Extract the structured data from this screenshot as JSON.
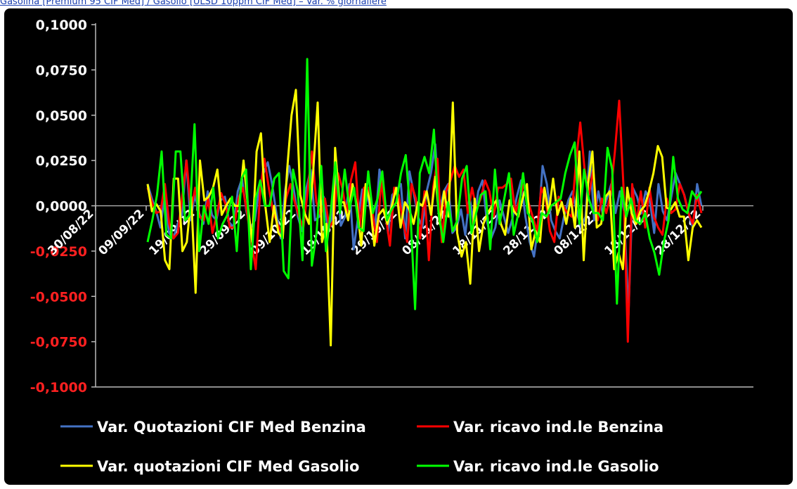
{
  "page": {
    "header_text": "Gasolina [Premium 95 CIF Med] / Gasolio [ULSD 10ppm CIF Med] – Var. % giornaliere"
  },
  "colors": {
    "background": "#000000",
    "axis": "#bbbbbb",
    "positive_tick": "#ffffff",
    "negative_tick": "#ff2020"
  },
  "chart_data": {
    "type": "line",
    "title": "",
    "xlabel": "",
    "ylabel": "",
    "ylim": [
      -0.1,
      0.1
    ],
    "yticks": [
      0.1,
      0.075,
      0.05,
      0.025,
      0,
      -0.025,
      -0.05,
      -0.075,
      -0.1
    ],
    "ytick_labels": [
      "0,1000",
      "0,0750",
      "0,0500",
      "0,0250",
      "0,0000",
      "-0,0250",
      "-0,0500",
      "-0,0750",
      "-0,1000"
    ],
    "xticks": [
      "30/08/22",
      "09/09/22",
      "19/09/22",
      "29/09/22",
      "09/10/22",
      "19/10/22",
      "29/10/22",
      "08/11/22",
      "18/11/22",
      "28/11/22",
      "08/12/22",
      "18/12/22",
      "28/12/22"
    ],
    "grid": false,
    "legend": "bottom",
    "x_start": "09/09/22",
    "series": [
      {
        "name": "Var. Quotazioni CIF Med Benzina",
        "color": "#4472c4",
        "values": [
          0.012,
          0.004,
          -0.003,
          -0.012,
          0.006,
          -0.015,
          -0.018,
          -0.01,
          -0.005,
          0.025,
          -0.008,
          0.006,
          -0.004,
          -0.01,
          0.008,
          -0.005,
          -0.008,
          0.003,
          0.005,
          -0.009,
          -0.012,
          0.008,
          0.015,
          -0.003,
          -0.012,
          -0.008,
          0.01,
          0.018,
          0.024,
          0.012,
          -0.004,
          -0.018,
          0.008,
          0.022,
          0.01,
          -0.006,
          -0.014,
          0.01,
          0.02,
          -0.008,
          -0.006,
          0.005,
          -0.014,
          -0.006,
          0.022,
          -0.011,
          -0.006,
          0.012,
          -0.024,
          -0.007,
          0.009,
          0.007,
          -0.003,
          -0.012,
          0.02,
          0.008,
          -0.015,
          0.006,
          0.009,
          0.012,
          -0.018,
          0.019,
          0.007,
          -0.006,
          -0.012,
          0.008,
          0.018,
          0.034,
          -0.003,
          0.008,
          0.012,
          -0.015,
          -0.012,
          -0.002,
          -0.016,
          0.005,
          -0.01,
          0.008,
          0.014,
          -0.008,
          -0.018,
          -0.012,
          0.003,
          -0.006,
          -0.015,
          -0.007,
          0.005,
          0.014,
          -0.006,
          -0.02,
          -0.028,
          -0.011,
          0.022,
          0.012,
          -0.008,
          -0.014,
          -0.018,
          -0.006,
          0.003,
          0.008,
          -0.004,
          -0.012,
          -0.006,
          0.03,
          -0.008,
          0.008,
          -0.004,
          0.004,
          0.012,
          -0.004,
          0.008,
          -0.003,
          -0.06,
          0.01,
          0.005,
          -0.004,
          0.008,
          0.003,
          -0.015,
          0.012,
          -0.003,
          -0.008,
          0.005,
          0.018,
          0.012,
          0.006,
          -0.004,
          -0.012,
          0.012,
          0.0
        ]
      },
      {
        "name": "Var. ricavo ind.le Benzina",
        "color": "#ff0000",
        "values": [
          0.01,
          0.002,
          -0.004,
          -0.003,
          0.012,
          -0.01,
          -0.018,
          -0.015,
          0.005,
          0.025,
          -0.003,
          0.01,
          -0.006,
          -0.008,
          0.004,
          -0.015,
          -0.005,
          0.007,
          0.001,
          -0.012,
          -0.012,
          0.004,
          0.01,
          -0.004,
          -0.02,
          -0.035,
          0.008,
          0.026,
          0.01,
          -0.003,
          -0.01,
          -0.015,
          0.004,
          0.012,
          0.002,
          -0.006,
          -0.012,
          0.008,
          0.03,
          0.002,
          -0.005,
          0.004,
          -0.012,
          -0.008,
          0.018,
          0.01,
          -0.004,
          0.014,
          0.024,
          -0.012,
          0.01,
          0.01,
          -0.004,
          -0.02,
          0.014,
          -0.005,
          -0.022,
          0.01,
          0.006,
          -0.008,
          -0.02,
          0.012,
          0.004,
          -0.018,
          0.008,
          -0.03,
          0.01,
          0.026,
          -0.02,
          0.008,
          0.014,
          0.022,
          0.016,
          0.02,
          -0.004,
          0.01,
          -0.002,
          0.004,
          0.014,
          0.008,
          -0.006,
          0.01,
          0.01,
          0.012,
          0.015,
          -0.004,
          0.004,
          0.012,
          0.002,
          -0.006,
          -0.014,
          0.01,
          0.004,
          -0.014,
          -0.02,
          0.005,
          0.0,
          -0.004,
          -0.006,
          0.024,
          0.046,
          0.02,
          0.006,
          0.02,
          -0.008,
          0.004,
          -0.004,
          0.006,
          0.03,
          0.058,
          0.01,
          -0.075,
          0.012,
          -0.01,
          0.008,
          -0.012,
          0.01,
          -0.006,
          -0.012,
          -0.016,
          0.004,
          -0.004,
          -0.002,
          0.012,
          0.006,
          -0.004,
          -0.01,
          0.006,
          -0.004
        ]
      },
      {
        "name": "Var. quotazioni CIF Med Gasolio",
        "color": "#ffff00",
        "values": [
          0.012,
          -0.003,
          0.001,
          -0.003,
          -0.03,
          -0.035,
          0.015,
          0.015,
          -0.025,
          -0.02,
          0.005,
          -0.048,
          0.025,
          0.003,
          0.005,
          0.01,
          0.02,
          -0.005,
          0.0,
          0.004,
          0.0,
          0.0,
          0.025,
          0.0,
          -0.02,
          0.03,
          0.04,
          0.0,
          -0.02,
          0.0,
          -0.015,
          -0.018,
          0.02,
          0.05,
          0.064,
          0.006,
          -0.004,
          -0.01,
          0.02,
          0.057,
          -0.02,
          -0.01,
          -0.077,
          0.032,
          0.002,
          0.002,
          -0.008,
          0.012,
          0.0,
          -0.022,
          0.012,
          0.002,
          -0.022,
          -0.005,
          -0.002,
          -0.01,
          0.0,
          0.01,
          -0.012,
          0.002,
          -0.002,
          -0.01,
          0.002,
          0.0,
          0.008,
          -0.005,
          0.016,
          -0.01,
          0.008,
          -0.006,
          0.057,
          -0.015,
          -0.028,
          -0.02,
          -0.043,
          0.004,
          -0.025,
          -0.01,
          -0.004,
          0.0,
          0.003,
          -0.01,
          -0.016,
          0.003,
          -0.003,
          -0.006,
          0.004,
          0.012,
          -0.024,
          -0.014,
          -0.02,
          0.01,
          -0.004,
          0.015,
          -0.005,
          0.002,
          -0.01,
          0.004,
          -0.012,
          0.03,
          -0.03,
          0.012,
          0.03,
          -0.012,
          -0.01,
          0.005,
          0.008,
          -0.035,
          -0.026,
          -0.035,
          0.01,
          -0.004,
          -0.01,
          -0.003,
          0.0,
          0.008,
          0.018,
          0.033,
          0.027,
          -0.001,
          -0.002,
          0.002,
          -0.006,
          -0.006,
          -0.03,
          -0.012,
          -0.008,
          -0.012
        ]
      },
      {
        "name": "Var. ricavo ind.le Gasolio",
        "color": "#00ff00",
        "values": [
          -0.02,
          -0.008,
          0.006,
          0.03,
          -0.016,
          -0.018,
          0.03,
          0.03,
          -0.008,
          -0.005,
          0.045,
          -0.025,
          0.0,
          -0.01,
          0.01,
          -0.018,
          -0.01,
          -0.005,
          0.005,
          -0.025,
          0.015,
          0.02,
          -0.035,
          0.004,
          0.014,
          0.0,
          0.0,
          0.015,
          0.018,
          -0.036,
          -0.04,
          0.02,
          0.008,
          -0.03,
          0.081,
          -0.033,
          -0.015,
          0.022,
          -0.025,
          -0.004,
          0.024,
          -0.004,
          0.02,
          -0.002,
          0.01,
          -0.012,
          -0.014,
          0.019,
          -0.004,
          0.004,
          0.019,
          -0.008,
          -0.002,
          0.002,
          0.018,
          0.028,
          -0.004,
          -0.057,
          0.018,
          0.027,
          0.018,
          0.042,
          -0.004,
          -0.02,
          0.002,
          -0.014,
          -0.008,
          0.015,
          0.022,
          -0.015,
          -0.004,
          0.006,
          0.008,
          -0.024,
          0.02,
          -0.01,
          0.004,
          0.018,
          -0.016,
          -0.004,
          0.018,
          -0.004,
          -0.008,
          -0.02,
          -0.004,
          -0.006,
          0.0,
          0.002,
          0.004,
          0.018,
          0.028,
          0.035,
          -0.01,
          0.02,
          0.004,
          -0.004,
          -0.004,
          -0.008,
          0.032,
          0.02,
          -0.054,
          0.01,
          -0.006,
          0.004,
          -0.008,
          -0.01,
          -0.004,
          -0.018,
          -0.026,
          -0.038,
          -0.02,
          -0.008,
          0.027,
          0.004,
          -0.002,
          -0.004,
          0.008,
          0.004,
          0.008
        ]
      }
    ]
  }
}
